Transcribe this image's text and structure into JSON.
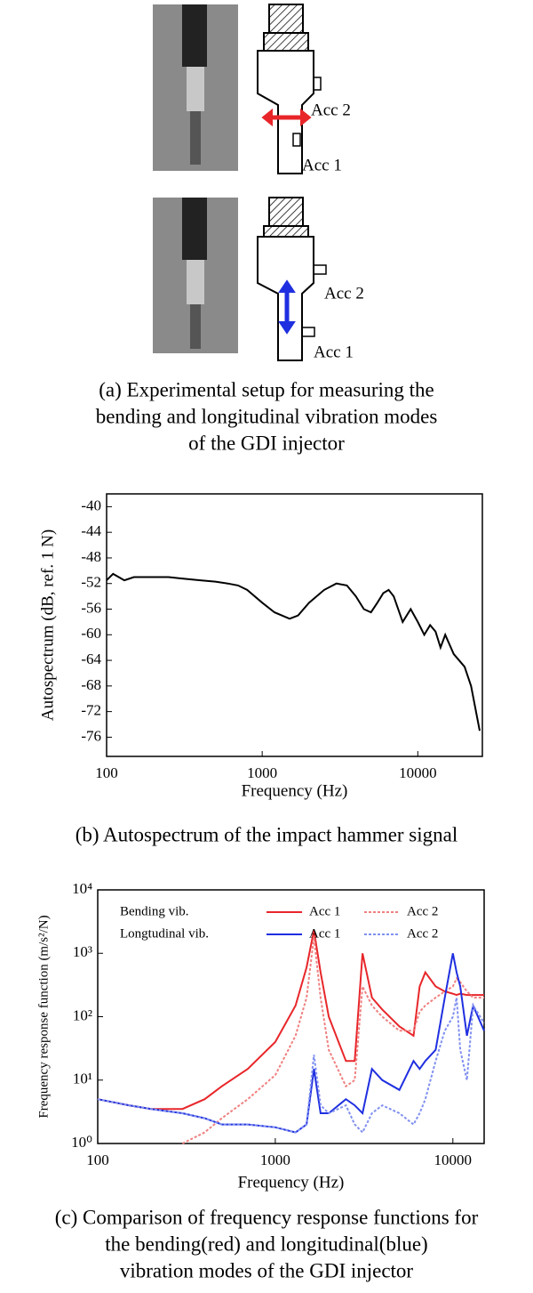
{
  "panel_a": {
    "labels": [
      "Acc 2",
      "Acc 1",
      "Acc 2",
      "Acc 1"
    ],
    "caption": [
      "(a) Experimental setup for measuring the",
      "bending and longitudinal vibration modes",
      "of the GDI injector"
    ]
  },
  "chart_data": [
    {
      "type": "line",
      "xscale": "log",
      "caption": [
        "(b) Autospectrum of the impact hammer signal"
      ],
      "x_label": "Frequency (Hz)",
      "y_label": "Autospectrum (dB, ref. 1 N)",
      "xlim": [
        100,
        26000
      ],
      "xticks": [
        100,
        1000,
        10000
      ],
      "ylim": [
        -79,
        -38
      ],
      "yticks": [
        -40,
        -44,
        -48,
        -52,
        -56,
        -60,
        -64,
        -68,
        -72,
        -76
      ],
      "x": [
        100,
        110,
        130,
        150,
        200,
        250,
        300,
        400,
        500,
        600,
        700,
        800,
        1000,
        1200,
        1500,
        1700,
        2000,
        2500,
        3000,
        3500,
        4000,
        4500,
        5000,
        5500,
        6000,
        6500,
        7000,
        8000,
        9000,
        10000,
        11000,
        12000,
        13000,
        14000,
        15000,
        17000,
        20000,
        22000,
        25000
      ],
      "series": [
        {
          "color": "#000000",
          "values": [
            -51.5,
            -50.5,
            -51.5,
            -51,
            -51,
            -51,
            -51.2,
            -51.5,
            -51.7,
            -52,
            -52.3,
            -53,
            -55,
            -56.5,
            -57.5,
            -57,
            -55,
            -53,
            -52,
            -52.3,
            -54,
            -56,
            -56.5,
            -55,
            -53.5,
            -53,
            -54,
            -58,
            -56,
            -58,
            -60,
            -58.5,
            -59.5,
            -62,
            -60,
            -63,
            -65,
            -68,
            -75
          ]
        }
      ]
    },
    {
      "type": "line",
      "xscale": "log",
      "yscale": "log",
      "caption": [
        "(c) Comparison of frequency response functions for",
        "the bending(red) and longitudinal(blue)",
        "vibration modes of the GDI injector"
      ],
      "x_label": "Frequency (Hz)",
      "y_label": "Frequency response function (m/s²/N)",
      "legend_groups": [
        "Bending vib.",
        "Longtudinal vib."
      ],
      "xlim": [
        100,
        15000
      ],
      "xticks": [
        100,
        1000,
        10000
      ],
      "ylim": [
        1,
        10000
      ],
      "yticks": [
        {
          "value": 1,
          "label": "10⁰"
        },
        {
          "value": 10,
          "label": "10¹"
        },
        {
          "value": 100,
          "label": "10²"
        },
        {
          "value": 1000,
          "label": "10³"
        },
        {
          "value": 10000,
          "label": "10⁴"
        }
      ],
      "x": [
        100,
        150,
        200,
        300,
        400,
        500,
        700,
        1000,
        1300,
        1500,
        1650,
        1800,
        2000,
        2500,
        2800,
        3100,
        3500,
        4000,
        5000,
        6000,
        6500,
        7000,
        8000,
        9000,
        10000,
        10500,
        11000,
        12000,
        13000,
        15000
      ],
      "series": [
        {
          "name": "Acc 1",
          "group": 0,
          "color": "#e8262a",
          "dash": false,
          "values": [
            5,
            4,
            3.5,
            3.5,
            5,
            8,
            15,
            40,
            150,
            600,
            2300,
            500,
            100,
            20,
            20,
            1000,
            200,
            130,
            70,
            50,
            300,
            500,
            300,
            250,
            230,
            220,
            230,
            220,
            220,
            220
          ]
        },
        {
          "name": "Acc 2",
          "group": 0,
          "color": "#f08080",
          "dash": true,
          "values": [
            null,
            null,
            null,
            1,
            1.5,
            2.5,
            5,
            12,
            50,
            200,
            1800,
            200,
            30,
            8,
            10,
            300,
            150,
            100,
            60,
            60,
            120,
            150,
            200,
            250,
            300,
            400,
            350,
            250,
            200,
            200
          ]
        },
        {
          "name": "Acc 1",
          "group": 1,
          "color": "#1f2fe0",
          "dash": false,
          "values": [
            5,
            4,
            3.5,
            3,
            2.5,
            2,
            2,
            1.8,
            1.5,
            2,
            15,
            3,
            3,
            5,
            4,
            3,
            15,
            10,
            7,
            20,
            15,
            20,
            30,
            200,
            1000,
            500,
            300,
            50,
            150,
            60
          ]
        },
        {
          "name": "Acc 2",
          "group": 1,
          "color": "#8090f0",
          "dash": true,
          "values": [
            5,
            4,
            3.5,
            3,
            2.5,
            2,
            2,
            1.8,
            1.5,
            2,
            25,
            4,
            3,
            4,
            2,
            1.5,
            3,
            4,
            3,
            2,
            3,
            5,
            20,
            60,
            100,
            200,
            30,
            10,
            150,
            80
          ]
        }
      ]
    }
  ]
}
